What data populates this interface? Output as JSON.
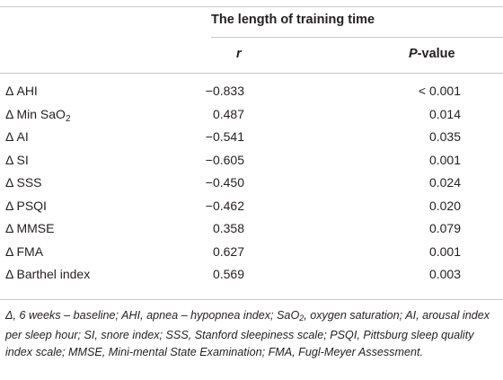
{
  "table": {
    "group_header": "The length of training time",
    "col_r": "r",
    "col_p_italic": "P",
    "col_p_rest": "-value",
    "delta": "Δ",
    "rows": [
      {
        "var": "AHI",
        "sub": "",
        "r": "−0.833",
        "p": "< 0.001"
      },
      {
        "var": "Min SaO",
        "sub": "2",
        "r": "0.487",
        "p": "0.014"
      },
      {
        "var": "AI",
        "sub": "",
        "r": "−0.541",
        "p": "0.035"
      },
      {
        "var": "SI",
        "sub": "",
        "r": "−0.605",
        "p": "0.001"
      },
      {
        "var": "SSS",
        "sub": "",
        "r": "−0.450",
        "p": "0.024"
      },
      {
        "var": "PSQI",
        "sub": "",
        "r": "−0.462",
        "p": "0.020"
      },
      {
        "var": "MMSE",
        "sub": "",
        "r": "0.358",
        "p": "0.079"
      },
      {
        "var": "FMA",
        "sub": "",
        "r": "0.627",
        "p": "0.001"
      },
      {
        "var": "Barthel index",
        "sub": "",
        "r": "0.569",
        "p": "0.003"
      }
    ]
  },
  "footnote": {
    "part1": "Δ, 6 weeks – baseline; AHI, apnea – hypopnea index; SaO",
    "sub": "2",
    "part2": ", oxygen saturation; AI, arousal index per sleep hour; SI, snore index; SSS, Stanford sleepiness scale; PSQI, Pittsburg sleep quality index scale; MMSE, Mini-mental State Examination; FMA, Fugl-Meyer Assessment."
  }
}
